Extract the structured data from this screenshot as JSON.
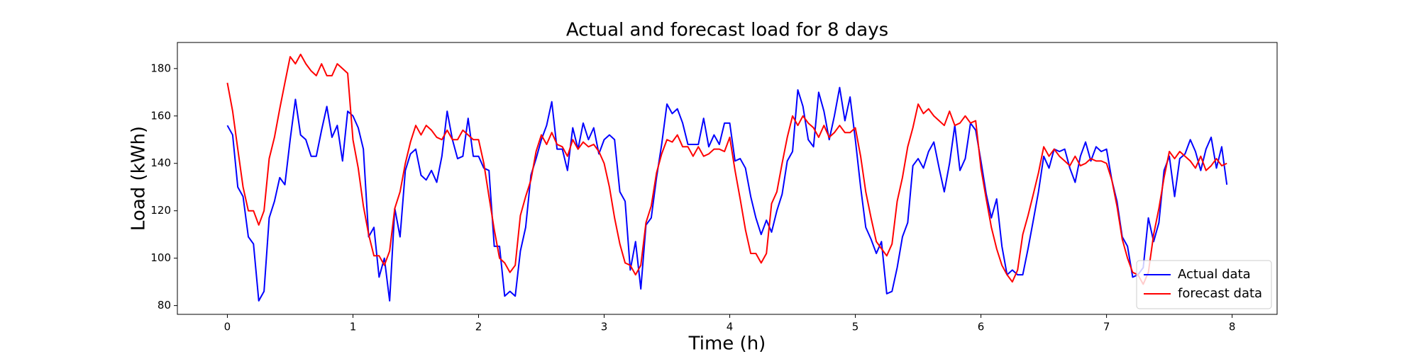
{
  "chart_data": {
    "type": "line",
    "title": "Actual and forecast load for 8 days",
    "xlabel": "Time (h)",
    "ylabel": "Load (kWh)",
    "x": [
      0,
      0.042,
      0.083,
      0.125,
      0.167,
      0.208,
      0.25,
      0.292,
      0.333,
      0.375,
      0.417,
      0.458,
      0.5,
      0.542,
      0.583,
      0.625,
      0.667,
      0.708,
      0.75,
      0.792,
      0.833,
      0.875,
      0.917,
      0.958,
      1,
      1.042,
      1.083,
      1.125,
      1.167,
      1.208,
      1.25,
      1.292,
      1.333,
      1.375,
      1.417,
      1.458,
      1.5,
      1.542,
      1.583,
      1.625,
      1.667,
      1.708,
      1.75,
      1.792,
      1.833,
      1.875,
      1.917,
      1.958,
      2,
      2.042,
      2.083,
      2.125,
      2.167,
      2.208,
      2.25,
      2.292,
      2.333,
      2.375,
      2.417,
      2.458,
      2.5,
      2.542,
      2.583,
      2.625,
      2.667,
      2.708,
      2.75,
      2.792,
      2.833,
      2.875,
      2.917,
      2.958,
      3,
      3.042,
      3.083,
      3.125,
      3.167,
      3.208,
      3.25,
      3.292,
      3.333,
      3.375,
      3.417,
      3.458,
      3.5,
      3.542,
      3.583,
      3.625,
      3.667,
      3.708,
      3.75,
      3.792,
      3.833,
      3.875,
      3.917,
      3.958,
      4,
      4.042,
      4.083,
      4.125,
      4.167,
      4.208,
      4.25,
      4.292,
      4.333,
      4.375,
      4.417,
      4.458,
      4.5,
      4.542,
      4.583,
      4.625,
      4.667,
      4.708,
      4.75,
      4.792,
      4.833,
      4.875,
      4.917,
      4.958,
      5,
      5.042,
      5.083,
      5.125,
      5.167,
      5.208,
      5.25,
      5.292,
      5.333,
      5.375,
      5.417,
      5.458,
      5.5,
      5.542,
      5.583,
      5.625,
      5.667,
      5.708,
      5.75,
      5.792,
      5.833,
      5.875,
      5.917,
      5.958,
      6,
      6.042,
      6.083,
      6.125,
      6.167,
      6.208,
      6.25,
      6.292,
      6.333,
      6.375,
      6.417,
      6.458,
      6.5,
      6.542,
      6.583,
      6.625,
      6.667,
      6.708,
      6.75,
      6.792,
      6.833,
      6.875,
      6.917,
      6.958,
      7,
      7.042,
      7.083,
      7.125,
      7.167,
      7.208,
      7.25,
      7.292,
      7.333,
      7.375,
      7.417,
      7.458,
      7.5,
      7.542,
      7.583,
      7.625,
      7.667,
      7.708,
      7.75,
      7.792,
      7.833,
      7.875,
      7.917,
      7.958
    ],
    "series": [
      {
        "name": "Actual data",
        "color": "#0000ff",
        "values": [
          156,
          152,
          130,
          126,
          109,
          106,
          82,
          86,
          117,
          124,
          134,
          131,
          150,
          167,
          152,
          150,
          143,
          143,
          154,
          164,
          151,
          156,
          141,
          162,
          160,
          155,
          146,
          109,
          113,
          92,
          100,
          82,
          121,
          109,
          137,
          144,
          146,
          135,
          133,
          137,
          132,
          143,
          162,
          150,
          142,
          143,
          159,
          143,
          143,
          138,
          137,
          105,
          105,
          84,
          86,
          84,
          103,
          113,
          135,
          142,
          150,
          156,
          166,
          146,
          146,
          137,
          155,
          146,
          157,
          150,
          155,
          144,
          150,
          152,
          150,
          128,
          124,
          95,
          107,
          87,
          114,
          117,
          134,
          148,
          165,
          161,
          163,
          157,
          148,
          148,
          148,
          159,
          147,
          152,
          148,
          157,
          157,
          141,
          142,
          138,
          126,
          117,
          110,
          116,
          111,
          120,
          127,
          141,
          145,
          171,
          164,
          150,
          147,
          170,
          162,
          150,
          160,
          172,
          158,
          168,
          150,
          130,
          113,
          108,
          102,
          107,
          85,
          86,
          96,
          109,
          115,
          139,
          142,
          138,
          145,
          149,
          138,
          128,
          140,
          156,
          137,
          142,
          157,
          154,
          141,
          127,
          117,
          125,
          105,
          93,
          95,
          93,
          93,
          104,
          116,
          128,
          143,
          138,
          146,
          145,
          146,
          138,
          132,
          143,
          149,
          141,
          147,
          145,
          146,
          133,
          124,
          109,
          105,
          92,
          93,
          96,
          117,
          107,
          115,
          137,
          143,
          126,
          142,
          144,
          150,
          145,
          137,
          146,
          151,
          138,
          147,
          131
        ]
      },
      {
        "name": "forecast data",
        "color": "#ff0000",
        "values": [
          174,
          162,
          146,
          130,
          120,
          120,
          114,
          120,
          142,
          151,
          163,
          174,
          185,
          182,
          186,
          182,
          179,
          177,
          182,
          177,
          177,
          182,
          180,
          178,
          150,
          138,
          122,
          110,
          101,
          101,
          97,
          103,
          121,
          128,
          140,
          149,
          156,
          152,
          156,
          154,
          151,
          150,
          154,
          150,
          150,
          154,
          152,
          150,
          150,
          140,
          126,
          112,
          100,
          98,
          94,
          97,
          118,
          126,
          133,
          145,
          152,
          148,
          153,
          148,
          147,
          143,
          150,
          146,
          149,
          147,
          148,
          145,
          140,
          130,
          117,
          106,
          98,
          97,
          93,
          97,
          115,
          122,
          136,
          144,
          150,
          149,
          152,
          147,
          147,
          143,
          147,
          143,
          144,
          146,
          146,
          145,
          151,
          137,
          125,
          112,
          102,
          102,
          98,
          102,
          123,
          128,
          140,
          151,
          160,
          156,
          160,
          157,
          155,
          151,
          156,
          151,
          153,
          156,
          153,
          153,
          155,
          143,
          128,
          117,
          107,
          104,
          101,
          106,
          124,
          134,
          147,
          155,
          165,
          161,
          163,
          160,
          158,
          156,
          162,
          156,
          157,
          160,
          157,
          158,
          138,
          125,
          113,
          104,
          97,
          93,
          90,
          95,
          110,
          118,
          127,
          136,
          147,
          143,
          146,
          143,
          141,
          139,
          143,
          139,
          140,
          142,
          141,
          141,
          140,
          133,
          122,
          108,
          100,
          94,
          93,
          89,
          94,
          110,
          121,
          134,
          145,
          142,
          145,
          143,
          141,
          138,
          143,
          137,
          139,
          142,
          139,
          140
        ]
      }
    ],
    "xlim": [
      -0.398,
      8.358
    ],
    "xticks": [
      0,
      1,
      2,
      3,
      4,
      5,
      6,
      7,
      8
    ],
    "ylim": [
      76.3,
      191
    ],
    "yticks": [
      80,
      100,
      120,
      140,
      160,
      180
    ],
    "grid": false,
    "legend": "lower right"
  }
}
